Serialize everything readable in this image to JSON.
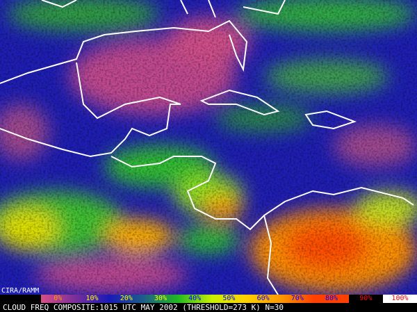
{
  "credit": "CIRA/RAMM",
  "legend": [
    {
      "label": "0%",
      "text_color": "#ff9900",
      "bg": "#d94f86"
    },
    {
      "label": "10%",
      "text_color": "#ffff00",
      "bg": "#7a2f9a"
    },
    {
      "label": "20%",
      "text_color": "#ffff00",
      "bg": "#1a1ab8"
    },
    {
      "label": "30%",
      "text_color": "#ffff00",
      "bg": "#1f5c8a"
    },
    {
      "label": "40%",
      "text_color": "#0000ff",
      "bg": "#22b822"
    },
    {
      "label": "50%",
      "text_color": "#0000ff",
      "bg": "#c8f000"
    },
    {
      "label": "60%",
      "text_color": "#0000ff",
      "bg": "#ffd000"
    },
    {
      "label": "70%",
      "text_color": "#0000ff",
      "bg": "#ff9a00"
    },
    {
      "label": "80%",
      "text_color": "#0000ff",
      "bg": "#ff4000"
    },
    {
      "label": "90%",
      "text_color": "#ff0000",
      "bg": "#000000"
    },
    {
      "label": "100%",
      "text_color": "#ff0000",
      "bg": "#ffffff"
    }
  ],
  "caption": "CLOUD FREQ COMPOSITE:1015 UTC MAY 2002 (THRESHOLD=273 K) N=30"
}
